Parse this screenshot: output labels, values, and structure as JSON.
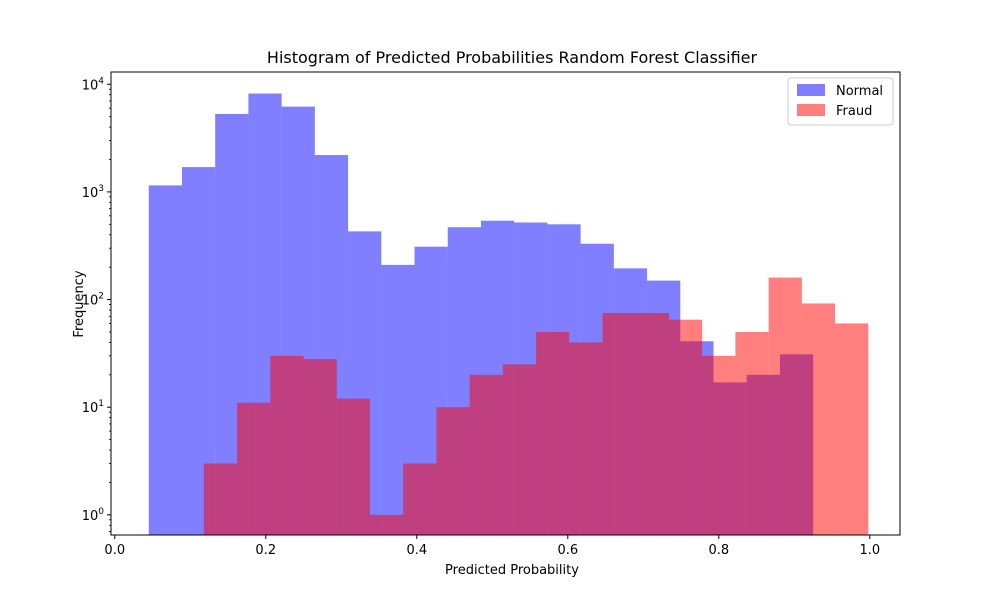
{
  "chart_data": {
    "type": "bar",
    "title": "Histogram of Predicted Probabilities Random Forest Classifier",
    "xlabel": "Predicted Probability",
    "ylabel": "Frequency",
    "xlim": [
      -0.005,
      1.04
    ],
    "ylim": [
      0.65,
      13000
    ],
    "yscale": "log",
    "grid": false,
    "legend_position": "top-right",
    "x_ticks": [
      {
        "value": 0.0,
        "label": "0.0"
      },
      {
        "value": 0.2,
        "label": "0.2"
      },
      {
        "value": 0.4,
        "label": "0.4"
      },
      {
        "value": 0.6,
        "label": "0.6"
      },
      {
        "value": 0.8,
        "label": "0.8"
      },
      {
        "value": 1.0,
        "label": "1.0"
      }
    ],
    "y_ticks": [
      {
        "value": 1,
        "base": "10",
        "exp": "0"
      },
      {
        "value": 10,
        "base": "10",
        "exp": "1"
      },
      {
        "value": 100,
        "base": "10",
        "exp": "2"
      },
      {
        "value": 1000,
        "base": "10",
        "exp": "3"
      },
      {
        "value": 10000,
        "base": "10",
        "exp": "4"
      }
    ],
    "series": [
      {
        "name": "Normal",
        "color": "#0000ff",
        "opacity": 0.5,
        "bin_edges": [
          0.045,
          0.089,
          0.133,
          0.177,
          0.221,
          0.265,
          0.309,
          0.353,
          0.397,
          0.441,
          0.485,
          0.529,
          0.573,
          0.617,
          0.661,
          0.705,
          0.749,
          0.793,
          0.837,
          0.881,
          0.925
        ],
        "counts": [
          1150,
          1700,
          5300,
          8200,
          6200,
          2200,
          430,
          210,
          310,
          470,
          540,
          520,
          500,
          330,
          195,
          150,
          41,
          17,
          20,
          31
        ]
      },
      {
        "name": "Fraud",
        "color": "#ff0000",
        "opacity": 0.5,
        "bin_edges": [
          0.118,
          0.162,
          0.206,
          0.25,
          0.294,
          0.338,
          0.382,
          0.426,
          0.47,
          0.514,
          0.558,
          0.602,
          0.646,
          0.69,
          0.734,
          0.778,
          0.822,
          0.866,
          0.91,
          0.954,
          0.998
        ],
        "counts": [
          3,
          11,
          30,
          28,
          12,
          1,
          3,
          10,
          20,
          25,
          50,
          40,
          75,
          75,
          65,
          30,
          50,
          160,
          92,
          60
        ]
      }
    ]
  }
}
